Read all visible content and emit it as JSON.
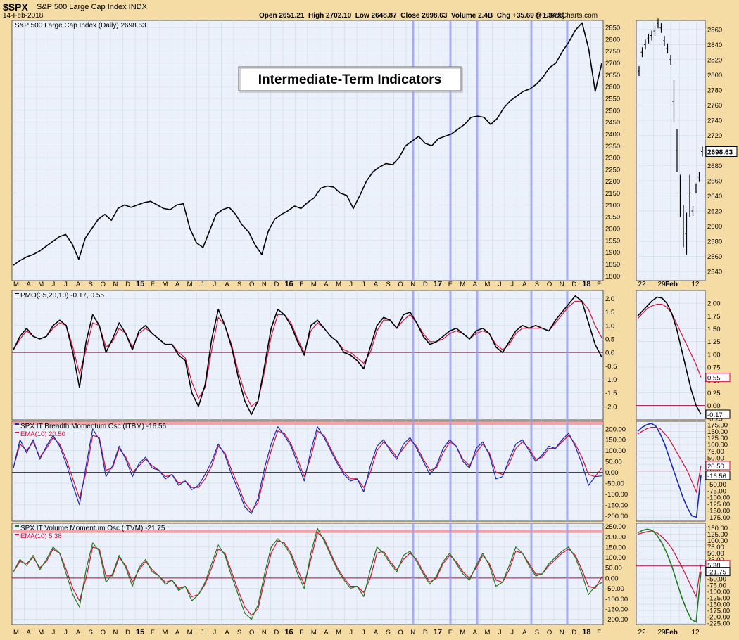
{
  "header": {
    "symbol": "$SPX",
    "name": "S&P 500 Large Cap Index INDX",
    "date": "14-Feb-2018",
    "ohlc": "Open 2651.21  High 2702.10  Low 2648.87  Close 2698.63  Volume 2.4B  Chg +35.69 (+1.34%)",
    "credit": "@ StockCharts.com"
  },
  "annotation": "Intermediate-Term Indicators",
  "colors": {
    "background": "#f5dca5",
    "panel": "#ecf0fa",
    "grid": "#c9dbe6",
    "price": "#000000",
    "pmo": "#000000",
    "ema": "#d0103a",
    "itbm": "#1a2ab0",
    "itvm": "#1d7a1d",
    "zero_line": "#9b1640",
    "band": "#f6a0a8",
    "vlines": "#9da2ea"
  },
  "x_axis_labels": [
    "M",
    "A",
    "M",
    "J",
    "J",
    "A",
    "S",
    "O",
    "N",
    "D",
    "15",
    "F",
    "M",
    "A",
    "M",
    "J",
    "J",
    "A",
    "S",
    "O",
    "N",
    "D",
    "16",
    "F",
    "M",
    "A",
    "M",
    "J",
    "J",
    "A",
    "S",
    "O",
    "N",
    "D",
    "17",
    "F",
    "M",
    "A",
    "M",
    "J",
    "J",
    "A",
    "S",
    "O",
    "N",
    "D",
    "18",
    "F"
  ],
  "x_axis_labels_zoom": [
    "22",
    "29",
    "Feb",
    "12"
  ],
  "chart_data": [
    {
      "type": "line",
      "title": "S&P 500 Large Cap Index (Daily) 2698.63",
      "series": [
        {
          "name": "S&P 500 Large Cap Index (Daily)",
          "values": [
            1845,
            1865,
            1880,
            1890,
            1905,
            1925,
            1945,
            1965,
            1975,
            1935,
            1870,
            1960,
            2000,
            2040,
            2060,
            2035,
            2085,
            2100,
            2090,
            2100,
            2110,
            2115,
            2100,
            2085,
            2080,
            2100,
            2105,
            2000,
            1940,
            1920,
            1990,
            2060,
            2080,
            2090,
            2060,
            2015,
            1985,
            1930,
            1890,
            1990,
            2040,
            2060,
            2075,
            2095,
            2085,
            2110,
            2130,
            2170,
            2180,
            2175,
            2150,
            2140,
            2085,
            2140,
            2200,
            2240,
            2260,
            2275,
            2270,
            2300,
            2350,
            2370,
            2390,
            2360,
            2350,
            2380,
            2390,
            2400,
            2420,
            2440,
            2470,
            2475,
            2470,
            2440,
            2465,
            2510,
            2540,
            2560,
            2580,
            2590,
            2610,
            2640,
            2680,
            2700,
            2750,
            2790,
            2840,
            2870,
            2760,
            2580,
            2698.63
          ]
        }
      ],
      "y_ticks": [
        1800,
        1850,
        1900,
        1950,
        2000,
        2050,
        2100,
        2150,
        2200,
        2250,
        2300,
        2350,
        2400,
        2450,
        2500,
        2550,
        2600,
        2650,
        2700,
        2750,
        2800,
        2850
      ],
      "y_range": [
        1780,
        2880
      ],
      "last_value": "2698.63"
    },
    {
      "type": "line",
      "title": "PMO(35,20,10) -0.17, 0.55",
      "series": [
        {
          "name": "PMO(35,20,10)",
          "values": [
            0.1,
            0.6,
            0.9,
            0.6,
            0.5,
            0.6,
            1.0,
            1.2,
            1.0,
            0.0,
            -1.3,
            0.4,
            1.4,
            1.0,
            0.0,
            0.5,
            1.1,
            0.7,
            0.1,
            0.8,
            1.0,
            0.7,
            0.5,
            0.3,
            0.3,
            -0.1,
            -0.3,
            -1.5,
            -2.0,
            -1.2,
            0.5,
            1.6,
            1.0,
            0.2,
            -0.9,
            -1.8,
            -2.3,
            -1.8,
            -0.5,
            0.9,
            1.6,
            1.4,
            1.0,
            0.4,
            -0.1,
            1.0,
            1.2,
            0.9,
            0.6,
            0.4,
            0.0,
            -0.1,
            -0.3,
            -0.6,
            0.2,
            1.0,
            1.3,
            1.2,
            0.9,
            1.4,
            1.5,
            1.1,
            0.6,
            0.3,
            0.4,
            0.6,
            0.8,
            0.9,
            0.7,
            0.5,
            0.8,
            0.9,
            0.7,
            0.2,
            0.0,
            0.4,
            0.8,
            1.0,
            0.9,
            1.0,
            0.9,
            0.8,
            1.2,
            1.5,
            1.8,
            2.1,
            1.9,
            1.1,
            0.3,
            -0.17
          ]
        },
        {
          "name": "EMA",
          "values": [
            0.1,
            0.5,
            0.8,
            0.6,
            0.5,
            0.6,
            0.9,
            1.1,
            1.0,
            0.2,
            -0.8,
            0.1,
            1.1,
            1.0,
            0.2,
            0.4,
            0.9,
            0.7,
            0.2,
            0.7,
            0.9,
            0.7,
            0.5,
            0.3,
            0.3,
            0.0,
            -0.2,
            -1.1,
            -1.7,
            -1.3,
            0.1,
            1.3,
            1.0,
            0.3,
            -0.7,
            -1.5,
            -2.0,
            -1.8,
            -0.7,
            0.6,
            1.4,
            1.4,
            1.1,
            0.5,
            0.0,
            0.8,
            1.1,
            0.9,
            0.6,
            0.4,
            0.1,
            0.0,
            -0.2,
            -0.4,
            0.0,
            0.8,
            1.2,
            1.2,
            0.9,
            1.2,
            1.4,
            1.1,
            0.7,
            0.4,
            0.4,
            0.5,
            0.7,
            0.8,
            0.7,
            0.5,
            0.7,
            0.8,
            0.7,
            0.3,
            0.1,
            0.3,
            0.7,
            0.9,
            0.9,
            0.9,
            0.9,
            0.8,
            1.1,
            1.4,
            1.7,
            1.9,
            1.9,
            1.6,
            1.0,
            0.55
          ]
        }
      ],
      "y_ticks": [
        -2.0,
        -1.5,
        -1.0,
        -0.5,
        0.0,
        0.5,
        1.0,
        1.5,
        2.0
      ],
      "y_range": [
        -2.5,
        2.3
      ],
      "last_values": [
        "0.55",
        "-0.17"
      ]
    },
    {
      "type": "line",
      "title": "SPX IT Breadth Momentum Osc (ITBM) -16.56",
      "series": [
        {
          "name": "SPX IT Breadth Momentum Osc (ITBM)",
          "values": [
            20,
            150,
            90,
            150,
            60,
            120,
            170,
            120,
            40,
            -60,
            -150,
            30,
            200,
            150,
            -20,
            30,
            120,
            60,
            -20,
            40,
            70,
            20,
            10,
            -30,
            -10,
            -60,
            -40,
            -80,
            -60,
            -10,
            50,
            130,
            80,
            -10,
            -80,
            -160,
            -190,
            -120,
            20,
            130,
            210,
            170,
            120,
            40,
            -40,
            100,
            210,
            160,
            100,
            40,
            -10,
            -40,
            -30,
            -90,
            30,
            120,
            150,
            100,
            60,
            130,
            160,
            110,
            50,
            -10,
            30,
            110,
            150,
            120,
            50,
            20,
            110,
            140,
            80,
            -30,
            -20,
            60,
            130,
            150,
            100,
            50,
            80,
            120,
            110,
            150,
            180,
            120,
            40,
            -60,
            -20,
            -16.56
          ]
        },
        {
          "name": "EMA(10)",
          "values": [
            20,
            130,
            100,
            140,
            70,
            110,
            160,
            130,
            60,
            -30,
            -120,
            0,
            170,
            160,
            10,
            20,
            110,
            70,
            0,
            30,
            60,
            30,
            10,
            -20,
            -10,
            -50,
            -40,
            -70,
            -70,
            -30,
            30,
            120,
            90,
            10,
            -60,
            -140,
            -180,
            -140,
            -10,
            100,
            190,
            180,
            130,
            60,
            -20,
            70,
            190,
            170,
            110,
            50,
            0,
            -30,
            -30,
            -70,
            0,
            100,
            140,
            110,
            70,
            110,
            150,
            120,
            60,
            10,
            20,
            90,
            140,
            120,
            60,
            30,
            90,
            130,
            90,
            0,
            -10,
            40,
            110,
            140,
            110,
            60,
            70,
            110,
            110,
            140,
            170,
            130,
            70,
            -10,
            -20,
            20.5
          ]
        }
      ],
      "y_ticks": [
        -200,
        -150,
        -100,
        -50,
        0,
        50,
        100,
        150,
        200
      ],
      "y_range": [
        -225,
        235
      ],
      "band_level": 225,
      "last_values": [
        "20.50",
        "-16.56"
      ]
    },
    {
      "type": "line",
      "title": "SPX IT Volume Momentum Osc (ITVM) -21.75",
      "series": [
        {
          "name": "SPX IT Volume Momentum Osc (ITVM)",
          "values": [
            30,
            90,
            60,
            110,
            40,
            90,
            150,
            120,
            20,
            -80,
            -140,
            40,
            170,
            130,
            -20,
            20,
            110,
            50,
            -40,
            50,
            90,
            30,
            10,
            -30,
            -10,
            -60,
            -40,
            -110,
            -80,
            -20,
            70,
            160,
            110,
            10,
            -80,
            -170,
            -200,
            -130,
            20,
            150,
            190,
            160,
            110,
            20,
            -50,
            120,
            240,
            180,
            110,
            40,
            -10,
            -50,
            -40,
            -90,
            40,
            150,
            120,
            70,
            30,
            110,
            130,
            80,
            20,
            -30,
            10,
            80,
            120,
            70,
            20,
            -10,
            60,
            120,
            60,
            -40,
            -20,
            60,
            150,
            120,
            60,
            10,
            20,
            70,
            100,
            130,
            150,
            100,
            20,
            -80,
            -40,
            -21.75
          ]
        },
        {
          "name": "EMA(10)",
          "values": [
            30,
            80,
            70,
            100,
            50,
            80,
            140,
            120,
            40,
            -50,
            -110,
            0,
            150,
            140,
            10,
            10,
            100,
            60,
            -20,
            40,
            80,
            40,
            10,
            -20,
            -10,
            -50,
            -40,
            -90,
            -80,
            -30,
            50,
            140,
            120,
            30,
            -60,
            -140,
            -180,
            -150,
            -10,
            120,
            180,
            170,
            120,
            40,
            -30,
            90,
            220,
            190,
            120,
            50,
            0,
            -40,
            -40,
            -70,
            0,
            120,
            130,
            80,
            40,
            90,
            120,
            90,
            30,
            -20,
            0,
            70,
            110,
            80,
            30,
            0,
            50,
            110,
            70,
            -10,
            -20,
            40,
            130,
            120,
            70,
            20,
            20,
            60,
            90,
            120,
            140,
            110,
            40,
            -40,
            -50,
            5.38
          ]
        }
      ],
      "y_ticks": [
        -200,
        -150,
        -100,
        -50,
        0,
        50,
        100,
        150,
        200,
        250
      ],
      "y_range": [
        -225,
        265
      ],
      "band_level": 225,
      "last_values": [
        "5.38",
        "-21.75"
      ]
    },
    {
      "type": "line",
      "title": "",
      "series": [
        {
          "name": "S&P 500 Large Cap Index (Daily)",
          "values": [
            2805,
            2830,
            2840,
            2848,
            2852,
            2858,
            2868,
            2862,
            2845,
            2835,
            2820,
            2765,
            2700,
            2640,
            2600,
            2590,
            2640,
            2620,
            2650,
            2665,
            2698.63
          ]
        }
      ],
      "y_ticks": [
        2540,
        2560,
        2580,
        2600,
        2620,
        2640,
        2660,
        2680,
        2700,
        2720,
        2740,
        2760,
        2780,
        2800,
        2820,
        2840,
        2860
      ],
      "y_range": [
        2528,
        2872
      ],
      "last_value": "2698.63"
    },
    {
      "type": "line",
      "title": "",
      "series": [
        {
          "name": "PMO(35,20,10)",
          "values": [
            1.75,
            1.85,
            1.95,
            2.05,
            2.12,
            2.1,
            2.0,
            1.8,
            1.5,
            1.1,
            0.7,
            0.3,
            0.0,
            -0.17
          ]
        },
        {
          "name": "EMA",
          "values": [
            1.7,
            1.8,
            1.9,
            1.95,
            1.98,
            1.98,
            1.92,
            1.8,
            1.6,
            1.4,
            1.2,
            1.0,
            0.8,
            0.55
          ]
        }
      ],
      "y_ticks": [
        -0.25,
        0.0,
        0.25,
        0.5,
        0.75,
        1.0,
        1.25,
        1.5,
        1.75,
        2.0
      ],
      "y_range": [
        -0.28,
        2.25
      ],
      "last_values": [
        "0.55",
        "-0.17"
      ]
    },
    {
      "type": "line",
      "title": "",
      "series": [
        {
          "name": "ITBM",
          "values": [
            150,
            165,
            175,
            180,
            170,
            140,
            100,
            50,
            0,
            -50,
            -100,
            -140,
            -170,
            -175,
            -16.56
          ]
        },
        {
          "name": "EMA(10)",
          "values": [
            140,
            150,
            160,
            165,
            165,
            160,
            140,
            120,
            90,
            60,
            30,
            0,
            -40,
            -80,
            20.5
          ]
        }
      ],
      "y_ticks": [
        -175,
        -150,
        -125,
        -100,
        -75,
        -50,
        -25,
        0,
        25,
        50,
        75,
        100,
        125,
        150,
        175
      ],
      "y_range": [
        -190,
        188
      ],
      "last_values": [
        "20.50",
        "-16.56"
      ]
    },
    {
      "type": "line",
      "title": "",
      "series": [
        {
          "name": "ITVM",
          "values": [
            130,
            140,
            145,
            140,
            120,
            90,
            50,
            0,
            -60,
            -120,
            -170,
            -210,
            -220,
            -21.75
          ]
        },
        {
          "name": "EMA(10)",
          "values": [
            125,
            130,
            135,
            138,
            130,
            115,
            95,
            70,
            35,
            0,
            -40,
            -80,
            -120,
            5.38
          ]
        }
      ],
      "y_ticks": [
        -225,
        -200,
        -175,
        -150,
        -125,
        -100,
        -75,
        -50,
        -25,
        0,
        25,
        50,
        75,
        100,
        125,
        150
      ],
      "y_range": [
        -230,
        168
      ],
      "last_values": [
        "5.38",
        "-21.75"
      ]
    }
  ]
}
